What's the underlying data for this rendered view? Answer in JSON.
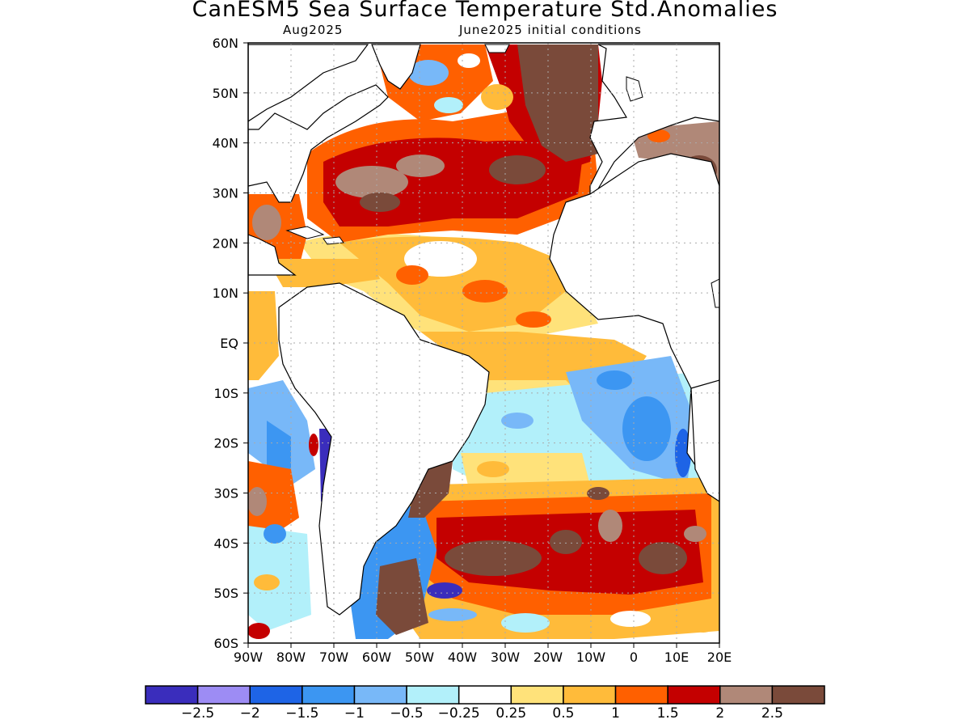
{
  "title": "CanESM5 Sea Surface Temperature Std.Anomalies",
  "valid_month": "Aug2025",
  "init_label": "June2025 initial conditions",
  "chart_data": {
    "type": "heatmap",
    "title": "CanESM5 Sea Surface Temperature Std.Anomalies",
    "x_ticks": [
      "90W",
      "80W",
      "70W",
      "60W",
      "50W",
      "40W",
      "30W",
      "20W",
      "10W",
      "0",
      "10E",
      "20E"
    ],
    "y_ticks": [
      "60N",
      "50N",
      "40N",
      "30N",
      "20N",
      "10N",
      "EQ",
      "10S",
      "20S",
      "30S",
      "40S",
      "50S",
      "60S"
    ],
    "lon_range": [
      -90,
      20
    ],
    "lat_range": [
      -60,
      60
    ],
    "grid": true,
    "colorbar": {
      "levels": [
        "−2.5",
        "−2",
        "−1.5",
        "−1",
        "−0.5",
        "−0.25",
        "0.25",
        "0.5",
        "1",
        "1.5",
        "2",
        "2.5"
      ],
      "colors": [
        "#3a2dbc",
        "#9d8cf4",
        "#1e64e6",
        "#3c96f2",
        "#78b8f8",
        "#b2f0fa",
        "#ffffff",
        "#ffe27a",
        "#ffbb3a",
        "#ff6000",
        "#c40000",
        "#b08878",
        "#7a4a3a"
      ]
    },
    "features": [
      {
        "region": "North Atlantic 25N-45N",
        "anomaly": "2 to 2.5+"
      },
      {
        "region": "Eastern North Atlantic 40N-60N",
        "anomaly": ">2.5"
      },
      {
        "region": "Tropical North Atlantic",
        "anomaly": "0.5 to 1.5"
      },
      {
        "region": "Gulf of Guinea / SE Atlantic",
        "anomaly": "-0.25 to -1.5"
      },
      {
        "region": "South Atlantic 35S-50S",
        "anomaly": "1.5 to 2.5+"
      },
      {
        "region": "Benguela coast",
        "anomaly": "< -1.5"
      }
    ]
  }
}
